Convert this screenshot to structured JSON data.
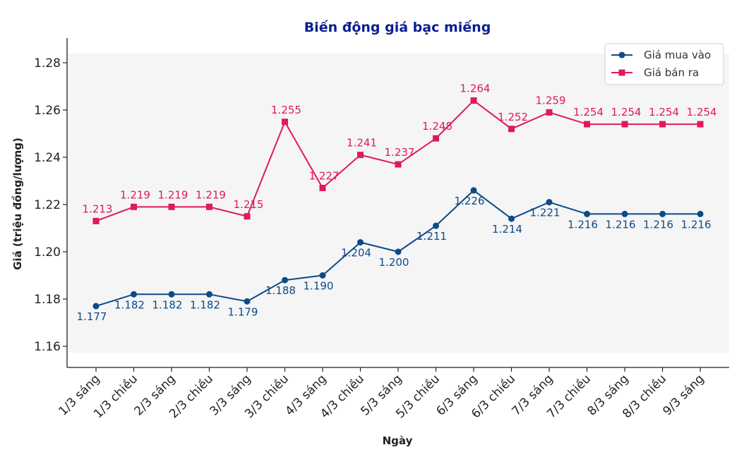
{
  "chart_data": {
    "type": "line",
    "title": "Biến động giá bạc miếng",
    "xlabel": "Ngày",
    "ylabel": "Giá (triệu đồng/lượng)",
    "categories": [
      "1/3 sáng",
      "1/3 chiều",
      "2/3 sáng",
      "2/3 chiều",
      "3/3 sáng",
      "3/3 chiều",
      "4/3 sáng",
      "4/3 chiều",
      "5/3 sáng",
      "5/3 chiều",
      "6/3 sáng",
      "6/3 chiều",
      "7/3 sáng",
      "7/3 chiều",
      "8/3 sáng",
      "8/3 chiều",
      "9/3 sáng"
    ],
    "ylim": [
      1.157,
      1.284
    ],
    "yticks": [
      1.16,
      1.18,
      1.2,
      1.22,
      1.24,
      1.26,
      1.28
    ],
    "ytick_labels": [
      "1.16",
      "1.18",
      "1.20",
      "1.22",
      "1.24",
      "1.26",
      "1.28"
    ],
    "legend_position": "top-right",
    "series": [
      {
        "name": "Giá mua vào",
        "color": "#0d4a87",
        "marker": "circle",
        "values": [
          1.177,
          1.182,
          1.182,
          1.182,
          1.179,
          1.188,
          1.19,
          1.204,
          1.2,
          1.211,
          1.226,
          1.214,
          1.221,
          1.216,
          1.216,
          1.216,
          1.216
        ],
        "labels": [
          "1.177",
          "1.182",
          "1.182",
          "1.182",
          "1.179",
          "1.188",
          "1.190",
          "1.204",
          "1.200",
          "1.211",
          "1.226",
          "1.214",
          "1.221",
          "1.216",
          "1.216",
          "1.216",
          "1.216"
        ]
      },
      {
        "name": "Giá bán ra",
        "color": "#e0195a",
        "marker": "square",
        "values": [
          1.213,
          1.219,
          1.219,
          1.219,
          1.215,
          1.255,
          1.227,
          1.241,
          1.237,
          1.248,
          1.264,
          1.252,
          1.259,
          1.254,
          1.254,
          1.254,
          1.254
        ],
        "labels": [
          "1.213",
          "1.219",
          "1.219",
          "1.219",
          "1.215",
          "1.255",
          "1.227",
          "1.241",
          "1.237",
          "1.248",
          "1.264",
          "1.252",
          "1.259",
          "1.254",
          "1.254",
          "1.254",
          "1.254"
        ]
      }
    ]
  },
  "colors": {
    "title": "#0a1f8f",
    "plot_background": "#f5f5f5"
  }
}
